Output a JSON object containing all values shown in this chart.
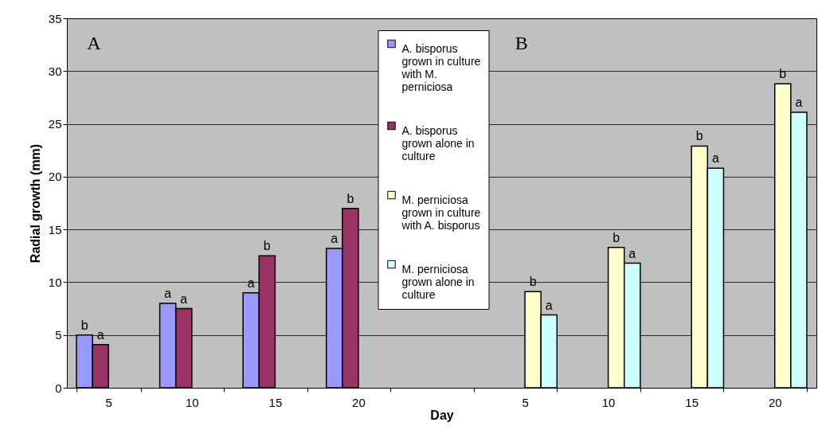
{
  "chart_data": {
    "type": "bar",
    "ylabel": "Radial growth (mm)",
    "xlabel": "Day",
    "categories": [
      "5",
      "10",
      "15",
      "20",
      null,
      "5",
      "10",
      "15",
      "20"
    ],
    "ylim": [
      0,
      35
    ],
    "yticks": [
      0,
      5,
      10,
      15,
      20,
      25,
      30,
      35
    ],
    "grid": "y",
    "legend": "top",
    "annotations": [
      "A",
      "B"
    ],
    "series": [
      {
        "name": "A. bisporus grown in culture with M. perniciosa",
        "color": "#9999ff",
        "values": [
          5.0,
          8.0,
          9.0,
          13.2,
          null,
          null,
          null,
          null,
          null
        ],
        "value_labels": [
          "b",
          "a",
          "a",
          "a",
          null,
          null,
          null,
          null,
          null
        ]
      },
      {
        "name": "A. bisporus grown alone in culture",
        "color": "#993366",
        "values": [
          4.1,
          7.5,
          12.5,
          17.0,
          null,
          null,
          null,
          null,
          null
        ],
        "value_labels": [
          "a",
          "a",
          "b",
          "b",
          null,
          null,
          null,
          null,
          null
        ]
      },
      {
        "name": "M. perniciosa grown in culture with A. bisporus",
        "color": "#ffffcc",
        "values": [
          null,
          null,
          null,
          null,
          null,
          9.1,
          13.3,
          22.9,
          28.8
        ],
        "value_labels": [
          null,
          null,
          null,
          null,
          null,
          "b",
          "b",
          "b",
          "b"
        ]
      },
      {
        "name": "M. perniciosa grown alone in culture",
        "color": "#ccffff",
        "values": [
          null,
          null,
          null,
          null,
          null,
          6.9,
          11.8,
          20.8,
          26.1
        ],
        "value_labels": [
          null,
          null,
          null,
          null,
          null,
          "a",
          "a",
          "a",
          "a"
        ]
      }
    ]
  }
}
